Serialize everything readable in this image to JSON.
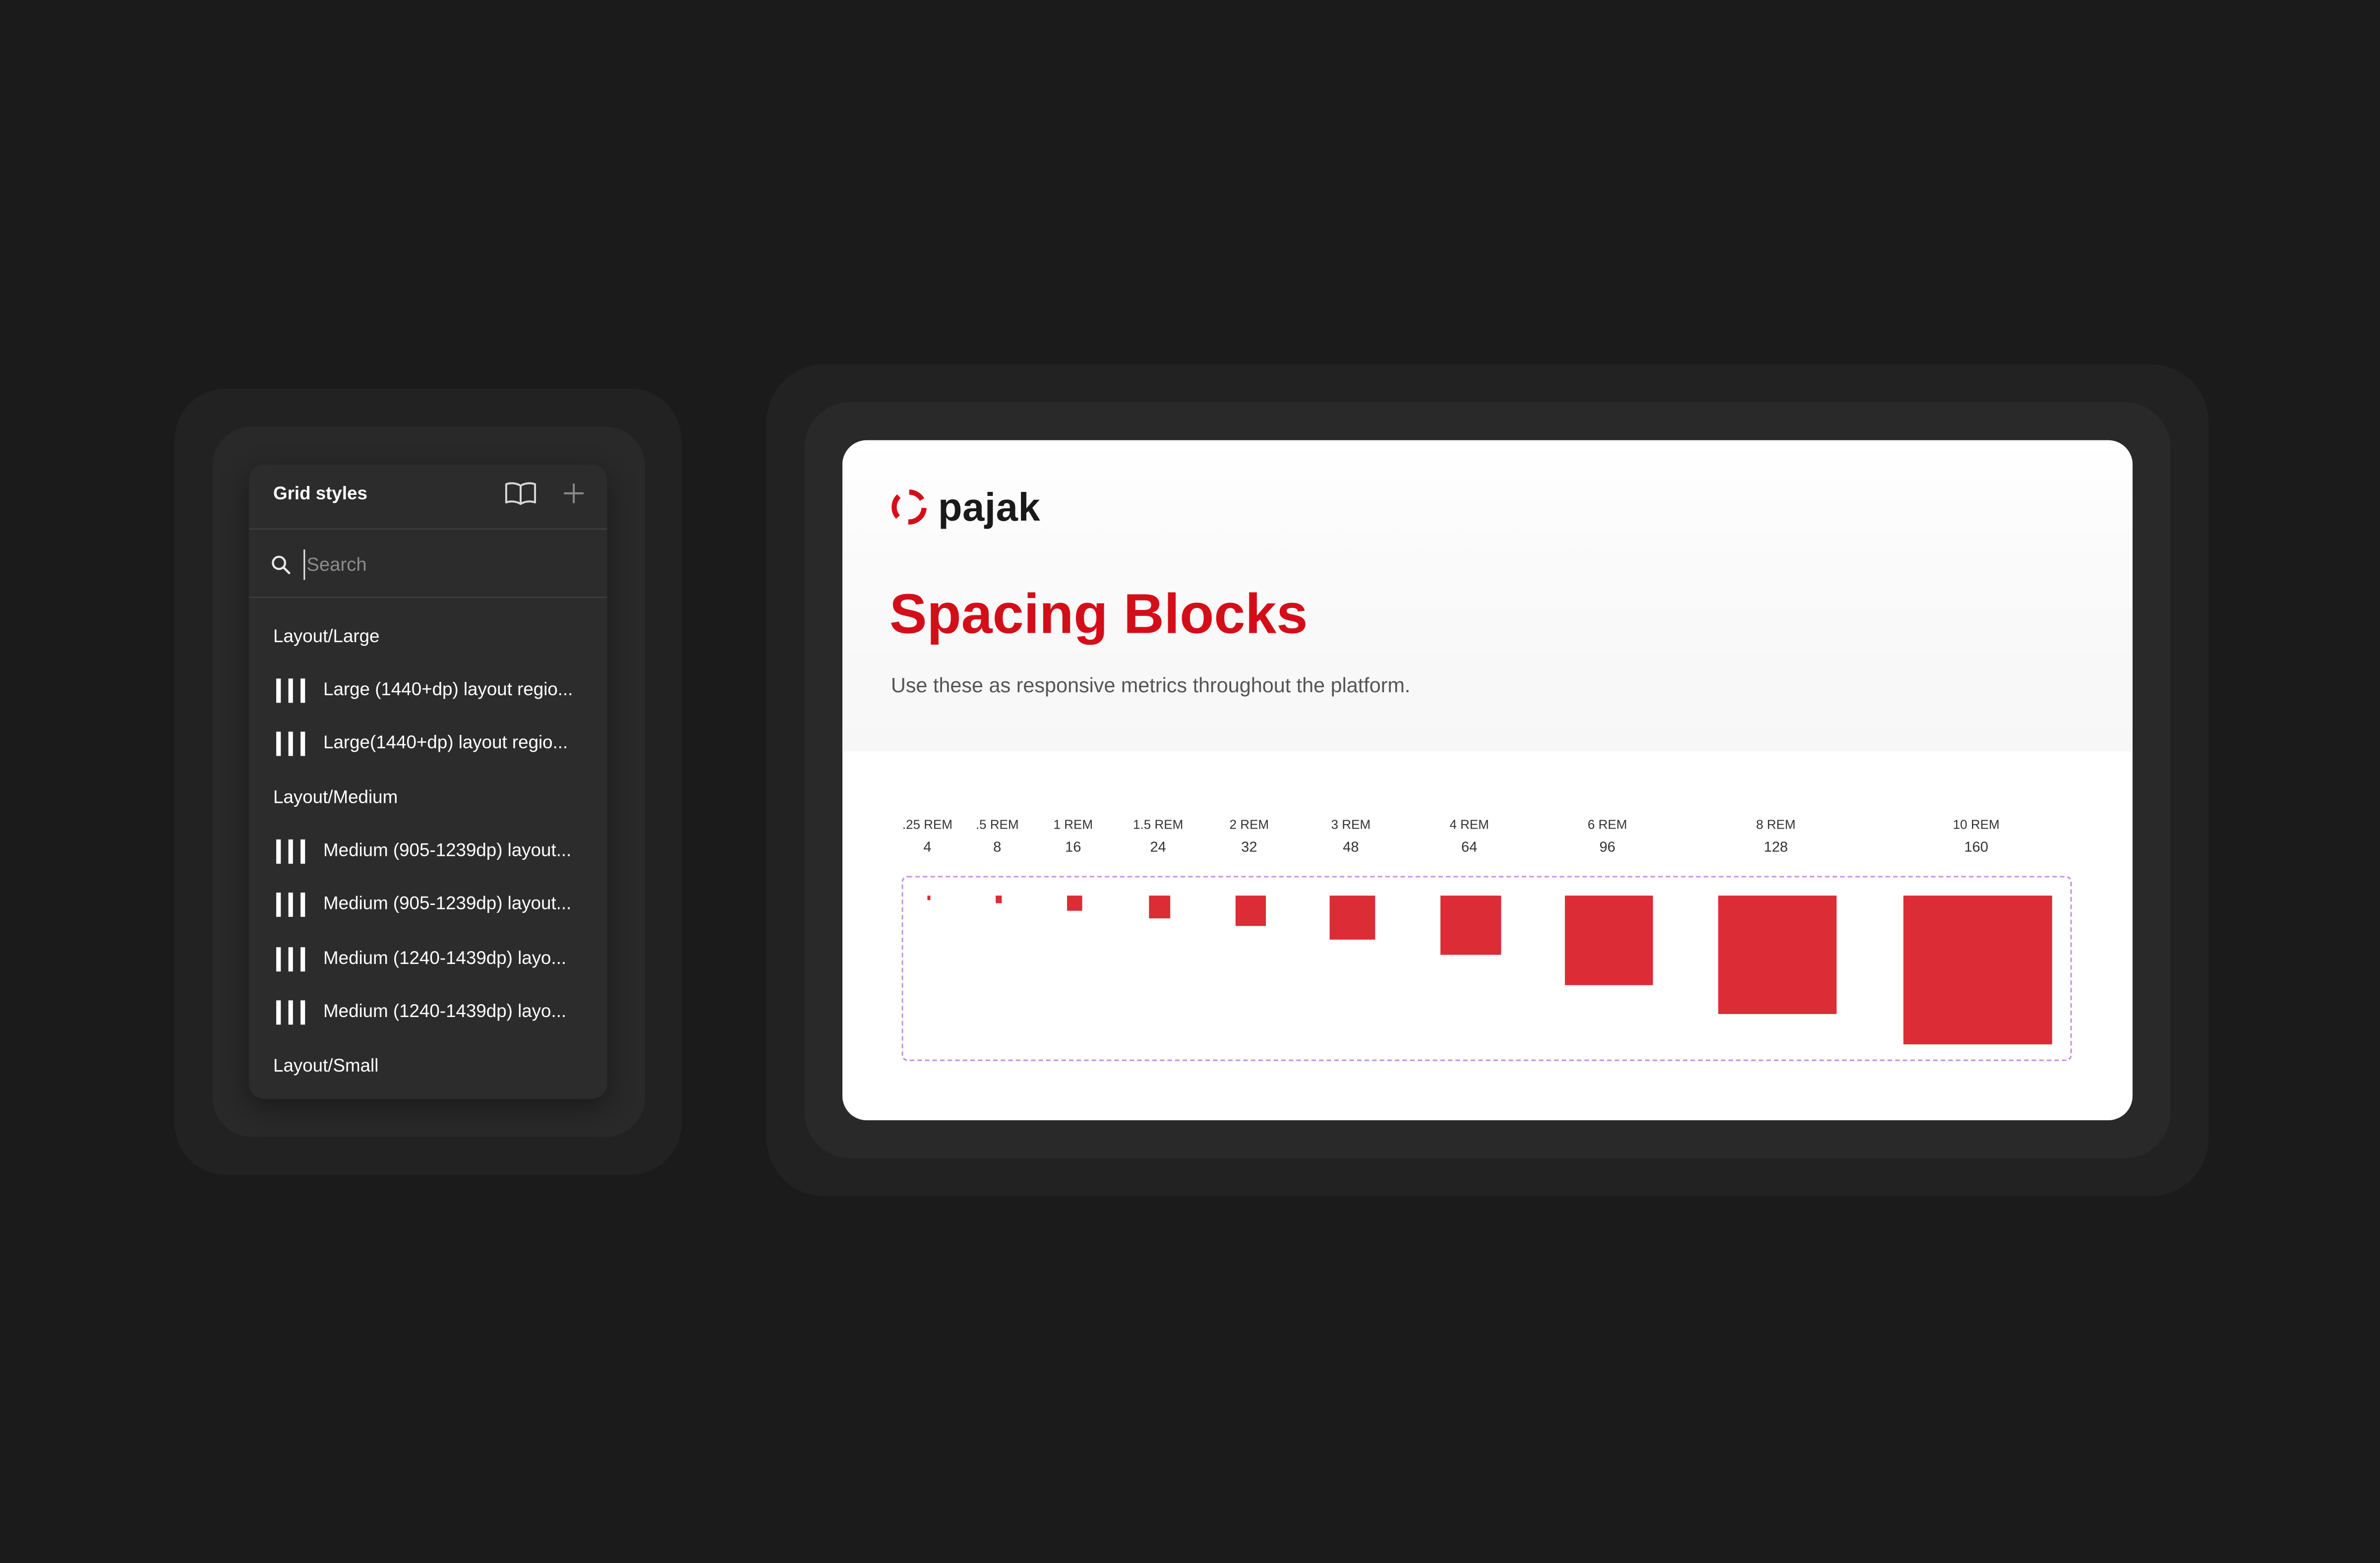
{
  "grid_panel": {
    "title": "Grid styles",
    "search_placeholder": "Search",
    "groups": [
      {
        "label": "Layout/Large"
      },
      {
        "label": "Layout/Medium"
      },
      {
        "label": "Layout/Small"
      }
    ],
    "items": [
      {
        "label": "Large (1440+dp) layout regio..."
      },
      {
        "label": "Large(1440+dp) layout regio..."
      },
      {
        "label": "Medium (905-1239dp) layout..."
      },
      {
        "label": "Medium (905-1239dp) layout..."
      },
      {
        "label": "Medium (1240-1439dp) layo..."
      },
      {
        "label": "Medium (1240-1439dp) layo..."
      }
    ]
  },
  "brand": {
    "name": "pajak",
    "accent": "#d40e19",
    "block_color": "#dc2c36"
  },
  "spacing_page": {
    "title": "Spacing Blocks",
    "subtitle": "Use these as responsive metrics throughout the platform.",
    "blocks": [
      {
        "rem": ".25 REM",
        "px": "4",
        "size": 4
      },
      {
        "rem": ".5 REM",
        "px": "8",
        "size": 8
      },
      {
        "rem": "1 REM",
        "px": "16",
        "size": 16
      },
      {
        "rem": "1.5 REM",
        "px": "24",
        "size": 24
      },
      {
        "rem": "2 REM",
        "px": "32",
        "size": 32
      },
      {
        "rem": "3 REM",
        "px": "48",
        "size": 48
      },
      {
        "rem": "4 REM",
        "px": "64",
        "size": 64
      },
      {
        "rem": "6 REM",
        "px": "96",
        "size": 96
      },
      {
        "rem": "8 REM",
        "px": "128",
        "size": 128
      },
      {
        "rem": "10 REM",
        "px": "160",
        "size": 160
      }
    ]
  }
}
